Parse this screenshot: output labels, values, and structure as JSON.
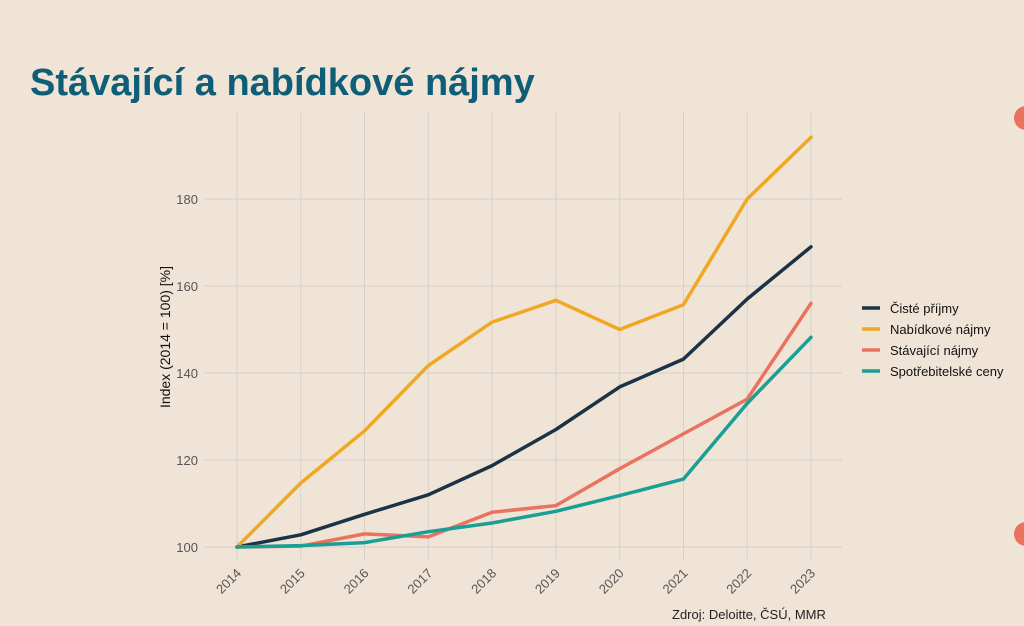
{
  "title": "Stávající a nabídkové nájmy",
  "source": "Zdroj: Deloitte, ČSÚ, MMR",
  "colors": {
    "background": "#f0e4d6",
    "title": "#0e5e78",
    "accent_dots": "#e8735f",
    "grid": "#d2d0cc"
  },
  "chart_data": {
    "type": "line",
    "x": [
      "2014",
      "2015",
      "2016",
      "2017",
      "2018",
      "2019",
      "2020",
      "2021",
      "2022",
      "2023"
    ],
    "ylabel": "Index (2014 = 100) [%]",
    "xlabel": "",
    "ylim": [
      97,
      200
    ],
    "yticks": [
      100,
      120,
      140,
      160,
      180
    ],
    "grid": true,
    "legend_position": "right",
    "series": [
      {
        "name": "Čisté příjmy",
        "color": "#1b3347",
        "values": [
          100,
          102.8,
          107.5,
          112,
          118.7,
          127,
          136.8,
          143.2,
          157,
          169
        ]
      },
      {
        "name": "Nabídkové nájmy",
        "color": "#f0a822",
        "values": [
          100,
          114.7,
          126.7,
          141.7,
          151.7,
          156.7,
          150,
          155.7,
          180,
          194.2
        ]
      },
      {
        "name": "Stávající nájmy",
        "color": "#e8735f",
        "values": [
          100,
          100.2,
          103,
          102.3,
          108,
          109.5,
          118,
          126,
          134,
          156
        ]
      },
      {
        "name": "Spotřebitelské ceny",
        "color": "#1a9e96",
        "values": [
          100,
          100.3,
          101,
          103.5,
          105.5,
          108.2,
          111.8,
          115.6,
          133,
          148.2
        ]
      }
    ]
  }
}
